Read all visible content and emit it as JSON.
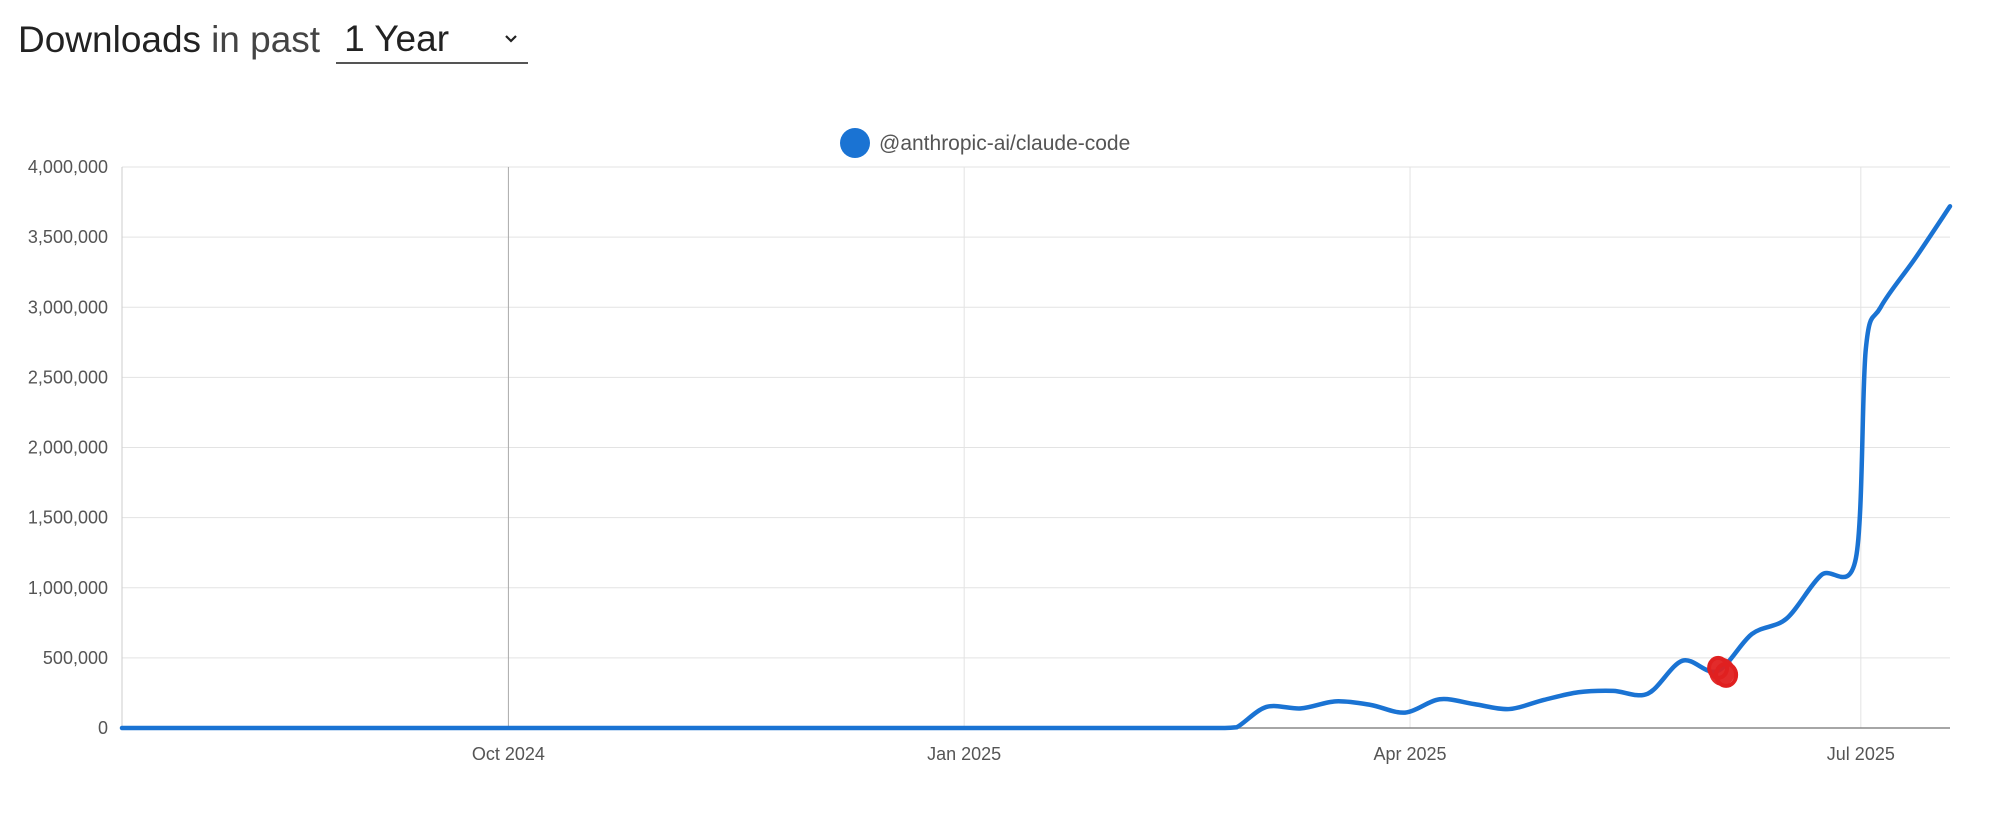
{
  "header": {
    "title_strong": "Downloads",
    "title_light": "in past",
    "range_selected": "1 Year"
  },
  "colors": {
    "series": "#1a73d3",
    "marker": "#e02020",
    "grid": "#e3e3e3",
    "axis": "#888888"
  },
  "chart_data": {
    "type": "line",
    "legend_position": "top-center",
    "grid": true,
    "x_axis": {
      "type": "date",
      "range": [
        "2024-07-15",
        "2025-07-19"
      ],
      "ticks": [
        {
          "date": "2024-10-01",
          "label": "Oct 2024"
        },
        {
          "date": "2025-01-01",
          "label": "Jan 2025"
        },
        {
          "date": "2025-04-01",
          "label": "Apr 2025"
        },
        {
          "date": "2025-07-01",
          "label": "Jul 2025"
        }
      ]
    },
    "y_axis": {
      "range": [
        0,
        4000000
      ],
      "ticks": [
        {
          "value": 0,
          "label": "0"
        },
        {
          "value": 500000,
          "label": "500,000"
        },
        {
          "value": 1000000,
          "label": "1,000,000"
        },
        {
          "value": 1500000,
          "label": "1,500,000"
        },
        {
          "value": 2000000,
          "label": "2,000,000"
        },
        {
          "value": 2500000,
          "label": "2,500,000"
        },
        {
          "value": 3000000,
          "label": "3,000,000"
        },
        {
          "value": 3500000,
          "label": "3,500,000"
        },
        {
          "value": 4000000,
          "label": "4,000,000"
        }
      ]
    },
    "series": [
      {
        "name": "@anthropic-ai/claude-code",
        "points": [
          {
            "x": "2024-07-15",
            "y": 0
          },
          {
            "x": "2024-08-15",
            "y": 0
          },
          {
            "x": "2024-09-15",
            "y": 0
          },
          {
            "x": "2024-10-15",
            "y": 0
          },
          {
            "x": "2024-11-15",
            "y": 0
          },
          {
            "x": "2024-12-15",
            "y": 0
          },
          {
            "x": "2025-01-15",
            "y": 0
          },
          {
            "x": "2025-02-15",
            "y": 0
          },
          {
            "x": "2025-02-22",
            "y": 0
          },
          {
            "x": "2025-02-25",
            "y": 5000
          },
          {
            "x": "2025-03-03",
            "y": 150000
          },
          {
            "x": "2025-03-10",
            "y": 140000
          },
          {
            "x": "2025-03-17",
            "y": 190000
          },
          {
            "x": "2025-03-24",
            "y": 165000
          },
          {
            "x": "2025-03-31",
            "y": 110000
          },
          {
            "x": "2025-04-07",
            "y": 205000
          },
          {
            "x": "2025-04-14",
            "y": 170000
          },
          {
            "x": "2025-04-21",
            "y": 135000
          },
          {
            "x": "2025-04-28",
            "y": 200000
          },
          {
            "x": "2025-05-05",
            "y": 255000
          },
          {
            "x": "2025-05-12",
            "y": 265000
          },
          {
            "x": "2025-05-19",
            "y": 245000
          },
          {
            "x": "2025-05-26",
            "y": 480000
          },
          {
            "x": "2025-06-02",
            "y": 405000
          },
          {
            "x": "2025-06-09",
            "y": 670000
          },
          {
            "x": "2025-06-16",
            "y": 780000
          },
          {
            "x": "2025-06-23",
            "y": 1090000
          },
          {
            "x": "2025-06-30",
            "y": 1210000
          },
          {
            "x": "2025-07-02",
            "y": 2700000
          },
          {
            "x": "2025-07-05",
            "y": 3000000
          },
          {
            "x": "2025-07-12",
            "y": 3350000
          },
          {
            "x": "2025-07-19",
            "y": 3720000
          }
        ]
      }
    ],
    "annotation": {
      "shape": "red-circle-mark",
      "x": "2025-06-03",
      "y": 400000
    }
  }
}
